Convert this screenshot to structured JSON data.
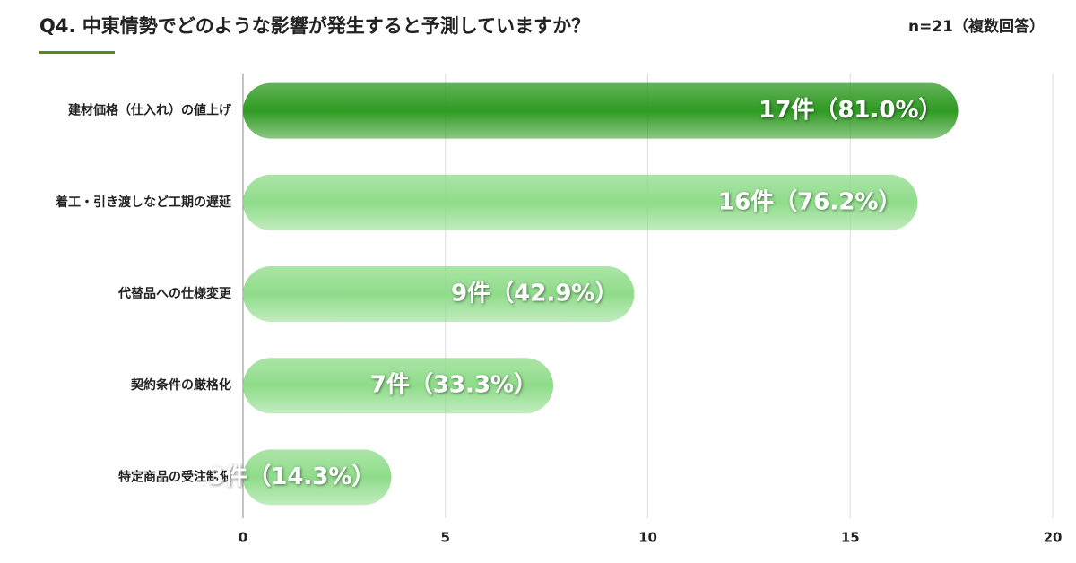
{
  "chart_data": {
    "type": "barh",
    "title": "Q4. 中東情勢でどのような影響が発生すると予測していますか？",
    "subtitle": "n=21（複数回答）",
    "categories": [
      "建材価格（仕入れ）の値上げ",
      "着工・引き渡しなど工期の遅延",
      "代替品への仕様変更",
      "契約条件の厳格化",
      "特定商品の受注制限"
    ],
    "values": [
      17,
      16,
      9,
      7,
      3
    ],
    "value_labels": [
      "17件（81.0%）",
      "16件（76.2%）",
      "9件（42.9%）",
      "7件（33.3%）",
      "3件（14.3%）"
    ],
    "color": "#8fdc8a",
    "highlight_color": "#2f9a22",
    "xlim": [
      0,
      20
    ],
    "xticks": [
      0,
      5,
      10,
      15,
      20
    ],
    "grid": true
  }
}
